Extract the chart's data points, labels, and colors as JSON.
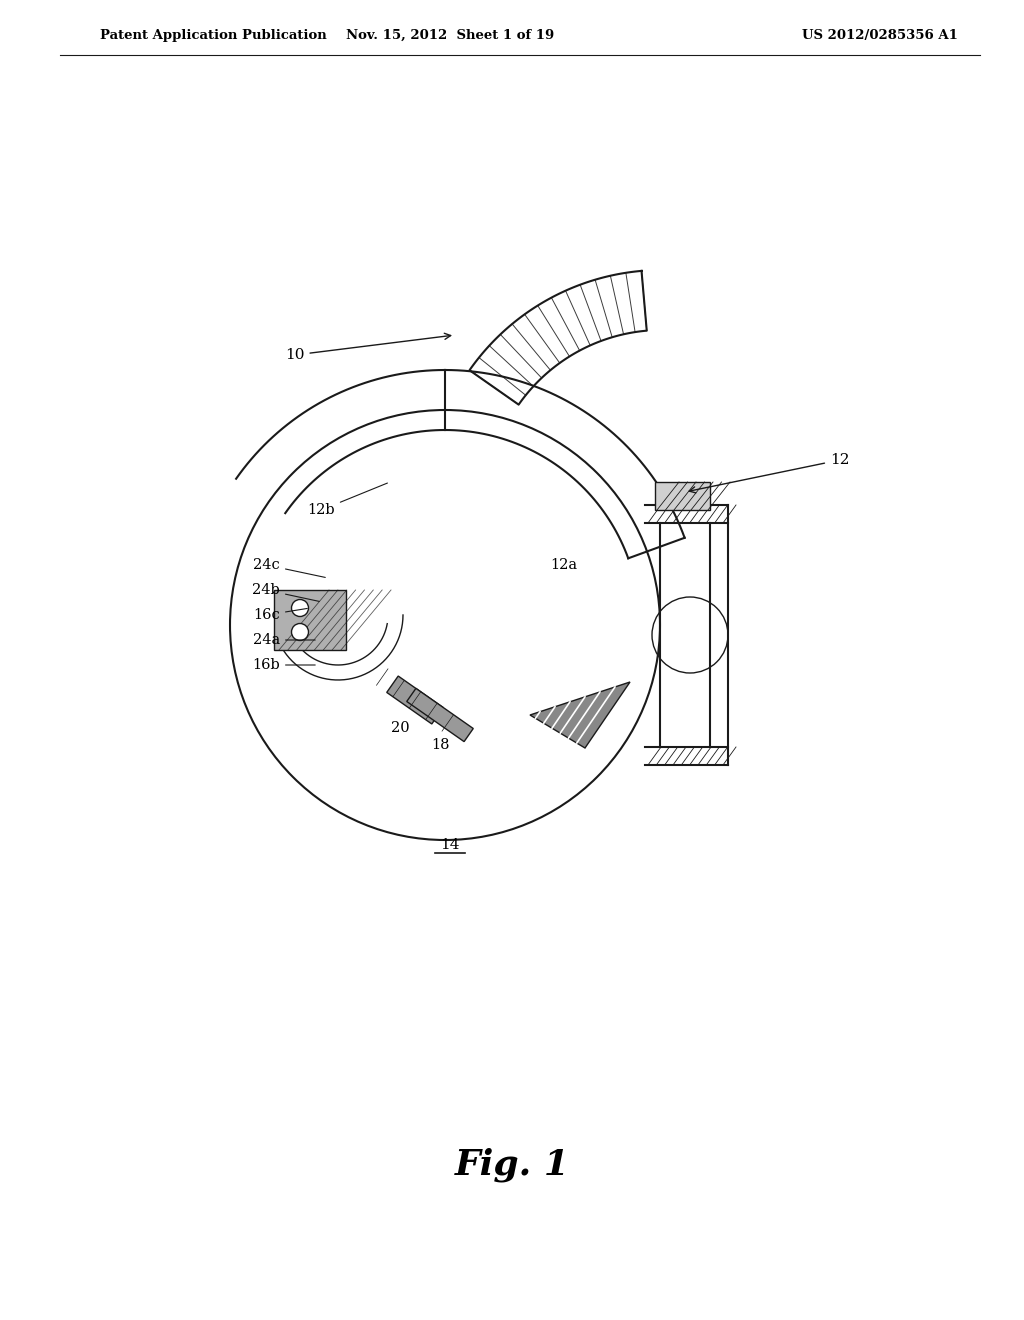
{
  "background_color": "#ffffff",
  "header_left": "Patent Application Publication",
  "header_center": "Nov. 15, 2012  Sheet 1 of 19",
  "header_right": "US 2012/0285356 A1",
  "figure_label": "FIG. 1",
  "color_main": "#1a1a1a",
  "lw_main": 1.5,
  "lw_thin": 1.0
}
